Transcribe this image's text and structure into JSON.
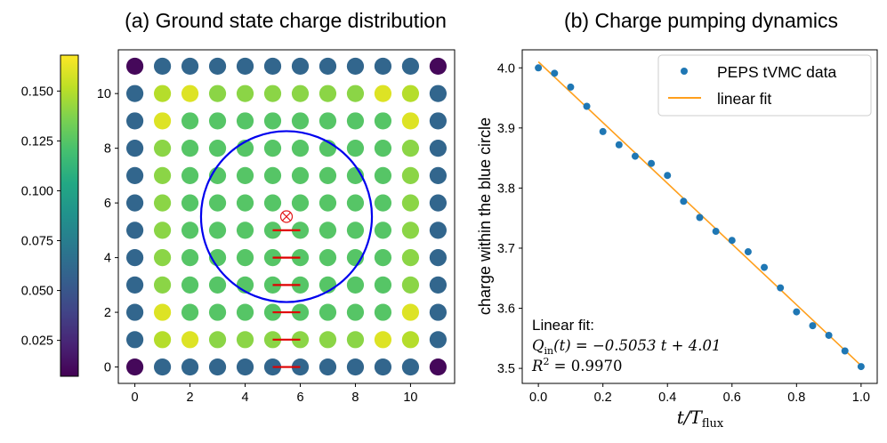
{
  "chart_data": [
    {
      "type": "heatmap",
      "title": "(a) Ground state charge distribution",
      "grid_size": 12,
      "xticks": [
        "0",
        "2",
        "4",
        "6",
        "8",
        "10"
      ],
      "yticks": [
        "0",
        "2",
        "4",
        "6",
        "8",
        "10"
      ],
      "xlim": [
        -0.6,
        11.6
      ],
      "ylim": [
        -0.6,
        11.6
      ],
      "colormap": "viridis",
      "color_range": [
        0.007,
        0.168
      ],
      "colorbar_ticks": [
        "0.025",
        "0.050",
        "0.075",
        "0.100",
        "0.125",
        "0.150"
      ],
      "colorbar_tick_values": [
        0.025,
        0.05,
        0.075,
        0.1,
        0.125,
        0.15
      ],
      "charge_grid_rows_from_y0": [
        [
          0.01,
          0.06,
          0.06,
          0.06,
          0.06,
          0.06,
          0.06,
          0.06,
          0.06,
          0.06,
          0.06,
          0.01
        ],
        [
          0.06,
          0.15,
          0.16,
          0.14,
          0.14,
          0.14,
          0.14,
          0.14,
          0.14,
          0.16,
          0.15,
          0.06
        ],
        [
          0.06,
          0.16,
          0.125,
          0.125,
          0.125,
          0.125,
          0.125,
          0.125,
          0.125,
          0.125,
          0.16,
          0.06
        ],
        [
          0.06,
          0.14,
          0.125,
          0.125,
          0.125,
          0.125,
          0.125,
          0.125,
          0.125,
          0.125,
          0.14,
          0.06
        ],
        [
          0.06,
          0.14,
          0.125,
          0.125,
          0.125,
          0.125,
          0.125,
          0.125,
          0.125,
          0.125,
          0.14,
          0.06
        ],
        [
          0.06,
          0.14,
          0.125,
          0.125,
          0.125,
          0.125,
          0.125,
          0.125,
          0.125,
          0.125,
          0.14,
          0.06
        ],
        [
          0.06,
          0.14,
          0.125,
          0.125,
          0.125,
          0.125,
          0.125,
          0.125,
          0.125,
          0.125,
          0.14,
          0.06
        ],
        [
          0.06,
          0.14,
          0.125,
          0.125,
          0.125,
          0.125,
          0.125,
          0.125,
          0.125,
          0.125,
          0.14,
          0.06
        ],
        [
          0.06,
          0.14,
          0.125,
          0.125,
          0.125,
          0.125,
          0.125,
          0.125,
          0.125,
          0.125,
          0.14,
          0.06
        ],
        [
          0.06,
          0.16,
          0.125,
          0.125,
          0.125,
          0.125,
          0.125,
          0.125,
          0.125,
          0.125,
          0.16,
          0.06
        ],
        [
          0.06,
          0.15,
          0.16,
          0.14,
          0.14,
          0.14,
          0.14,
          0.14,
          0.14,
          0.16,
          0.15,
          0.06
        ],
        [
          0.01,
          0.06,
          0.06,
          0.06,
          0.06,
          0.06,
          0.06,
          0.06,
          0.06,
          0.06,
          0.06,
          0.01
        ]
      ],
      "circle": {
        "center": [
          5.5,
          5.5
        ],
        "radius": 3.1,
        "color": "#0000ee"
      },
      "flux_marker": {
        "position": [
          5.5,
          5.5
        ],
        "color": "#e31a1c"
      },
      "red_segments": [
        {
          "x": [
            5,
            6
          ],
          "y": 0
        },
        {
          "x": [
            5,
            6
          ],
          "y": 1
        },
        {
          "x": [
            5,
            6
          ],
          "y": 2
        },
        {
          "x": [
            5,
            6
          ],
          "y": 3
        },
        {
          "x": [
            5,
            6
          ],
          "y": 4
        },
        {
          "x": [
            5,
            6
          ],
          "y": 5
        }
      ]
    },
    {
      "type": "scatter",
      "title": "(b) Charge pumping dynamics",
      "xlabel_var": "t/T",
      "xlabel_sub": "flux",
      "ylabel": "charge within the blue circle",
      "xlim": [
        -0.05,
        1.05
      ],
      "ylim": [
        3.475,
        4.03
      ],
      "xticks": [
        0.0,
        0.2,
        0.4,
        0.6,
        0.8,
        1.0
      ],
      "xtick_labels": [
        "0.0",
        "0.2",
        "0.4",
        "0.6",
        "0.8",
        "1.0"
      ],
      "yticks": [
        3.5,
        3.6,
        3.7,
        3.8,
        3.9,
        4.0
      ],
      "ytick_labels": [
        "3.5",
        "3.6",
        "3.7",
        "3.8",
        "3.9",
        "4.0"
      ],
      "series": [
        {
          "name": "PEPS tVMC data",
          "color": "#1f77b4",
          "x": [
            0.0,
            0.05,
            0.1,
            0.15,
            0.2,
            0.25,
            0.3,
            0.35,
            0.4,
            0.45,
            0.5,
            0.55,
            0.6,
            0.65,
            0.7,
            0.75,
            0.8,
            0.85,
            0.9,
            0.95,
            1.0
          ],
          "y": [
            4.0,
            3.991,
            3.968,
            3.936,
            3.894,
            3.872,
            3.853,
            3.841,
            3.821,
            3.778,
            3.751,
            3.728,
            3.713,
            3.694,
            3.668,
            3.634,
            3.594,
            3.571,
            3.555,
            3.529,
            3.503
          ]
        },
        {
          "name": "linear fit",
          "color": "#ff9f1c",
          "type": "line",
          "slope": -0.5053,
          "intercept": 4.01
        }
      ],
      "legend": [
        "PEPS tVMC data",
        "linear fit"
      ],
      "annotation": {
        "heading": "Linear fit:",
        "equation_lhs": "Q",
        "equation_sub": "in",
        "equation_rest": "(t) = −0.5053 t + 4.01",
        "r2_lhs": "R",
        "r2_sup": "2",
        "r2_rest": " = 0.9970"
      }
    }
  ]
}
